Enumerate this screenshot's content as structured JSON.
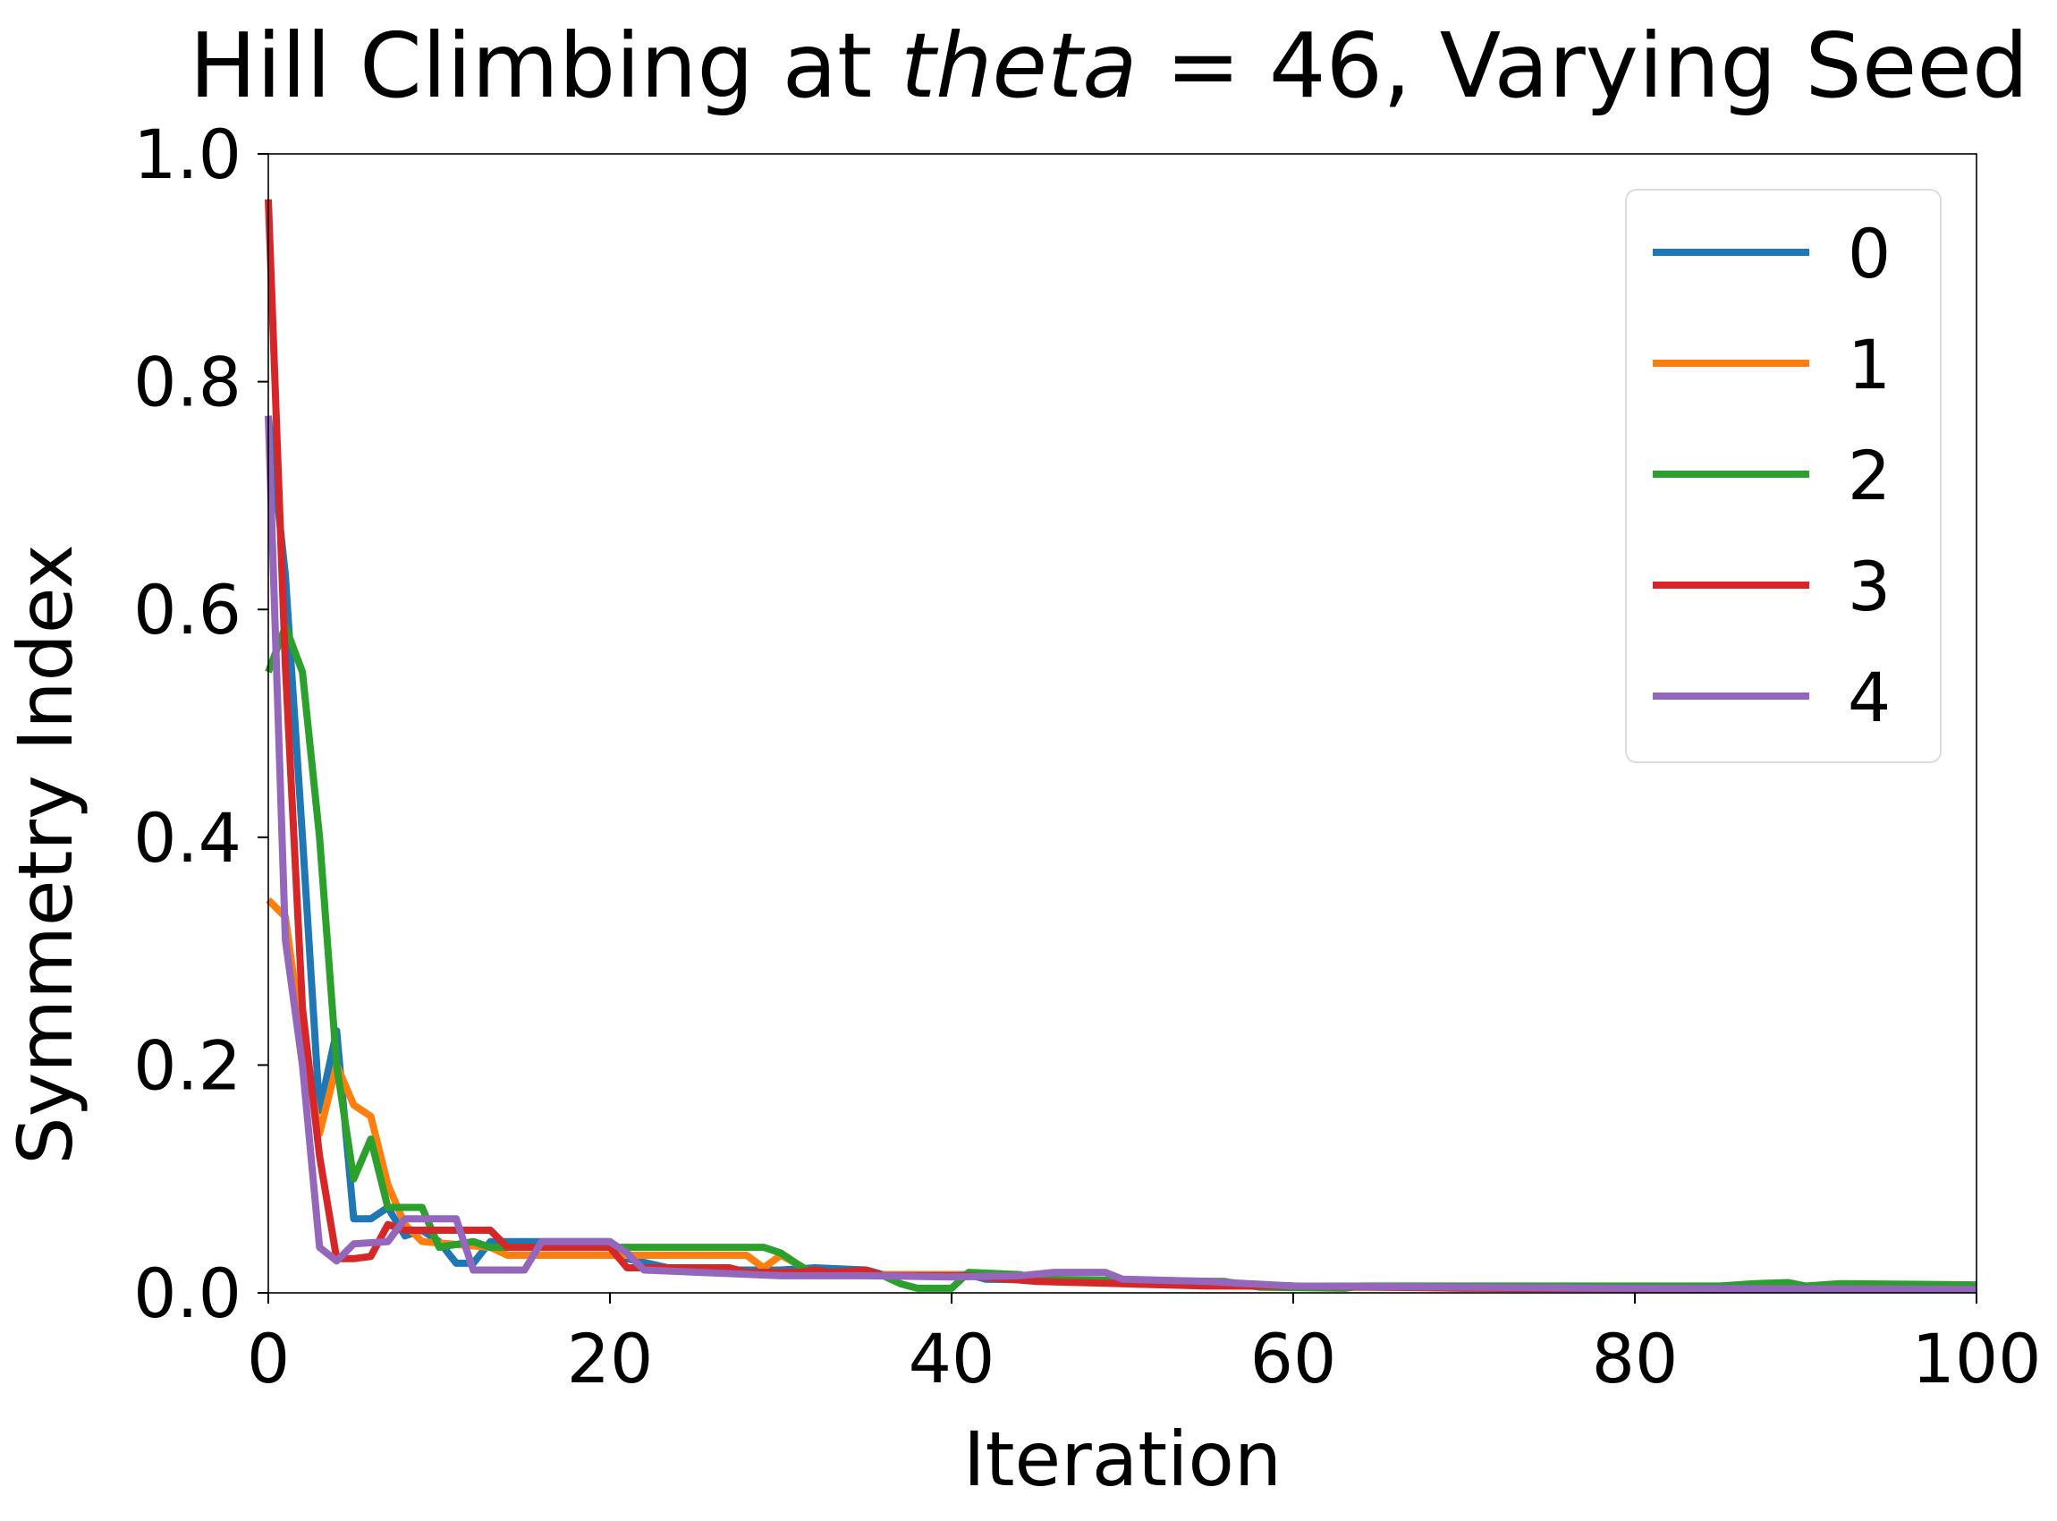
{
  "chart_data": {
    "type": "line",
    "title_parts": [
      "Hill Climbing at ",
      "theta",
      " = 46, Varying Seed"
    ],
    "xlabel": "Iteration",
    "ylabel": "Symmetry Index",
    "xlim": [
      0,
      100
    ],
    "ylim": [
      0.0,
      1.0
    ],
    "xticks": [
      0,
      20,
      40,
      60,
      80,
      100
    ],
    "xtick_labels": [
      "0",
      "20",
      "40",
      "60",
      "80",
      "100"
    ],
    "yticks": [
      0.0,
      0.2,
      0.4,
      0.6,
      0.8,
      1.0
    ],
    "ytick_labels": [
      "0.0",
      "0.2",
      "0.4",
      "0.6",
      "0.8",
      "1.0"
    ],
    "grid": false,
    "legend_position": "upper right",
    "series": [
      {
        "name": "0",
        "color": "#1f77b4",
        "points": [
          [
            0,
            0.77
          ],
          [
            1,
            0.63
          ],
          [
            2,
            0.4
          ],
          [
            3,
            0.16
          ],
          [
            4,
            0.23
          ],
          [
            5,
            0.065
          ],
          [
            6,
            0.065
          ],
          [
            7,
            0.075
          ],
          [
            8,
            0.05
          ],
          [
            9,
            0.055
          ],
          [
            10,
            0.045
          ],
          [
            11,
            0.026
          ],
          [
            12,
            0.026
          ],
          [
            13,
            0.045
          ],
          [
            20,
            0.045
          ],
          [
            21,
            0.03
          ],
          [
            24,
            0.02
          ],
          [
            30,
            0.02
          ],
          [
            32,
            0.022
          ],
          [
            35,
            0.02
          ],
          [
            36,
            0.016
          ],
          [
            41,
            0.016
          ],
          [
            42,
            0.012
          ],
          [
            50,
            0.01
          ],
          [
            60,
            0.006
          ],
          [
            100,
            0.005
          ]
        ]
      },
      {
        "name": "1",
        "color": "#ff7f0e",
        "points": [
          [
            0,
            0.345
          ],
          [
            1,
            0.33
          ],
          [
            2,
            0.22
          ],
          [
            3,
            0.14
          ],
          [
            4,
            0.2
          ],
          [
            5,
            0.165
          ],
          [
            6,
            0.155
          ],
          [
            7,
            0.095
          ],
          [
            8,
            0.06
          ],
          [
            9,
            0.045
          ],
          [
            13,
            0.04
          ],
          [
            14,
            0.033
          ],
          [
            28,
            0.033
          ],
          [
            29,
            0.022
          ],
          [
            30,
            0.033
          ],
          [
            31,
            0.025
          ],
          [
            32,
            0.016
          ],
          [
            40,
            0.016
          ],
          [
            50,
            0.008
          ],
          [
            60,
            0.005
          ],
          [
            100,
            0.004
          ]
        ]
      },
      {
        "name": "2",
        "color": "#2ca02c",
        "points": [
          [
            0,
            0.545
          ],
          [
            1,
            0.585
          ],
          [
            2,
            0.545
          ],
          [
            3,
            0.4
          ],
          [
            4,
            0.2
          ],
          [
            5,
            0.1
          ],
          [
            6,
            0.135
          ],
          [
            7,
            0.075
          ],
          [
            9,
            0.075
          ],
          [
            10,
            0.04
          ],
          [
            12,
            0.045
          ],
          [
            13,
            0.04
          ],
          [
            20,
            0.04
          ],
          [
            29,
            0.04
          ],
          [
            30,
            0.035
          ],
          [
            31,
            0.025
          ],
          [
            32,
            0.016
          ],
          [
            36,
            0.015
          ],
          [
            37,
            0.008
          ],
          [
            38,
            0.004
          ],
          [
            40,
            0.004
          ],
          [
            41,
            0.018
          ],
          [
            44,
            0.016
          ],
          [
            45,
            0.012
          ],
          [
            56,
            0.01
          ],
          [
            58,
            0.005
          ],
          [
            63,
            0.004
          ],
          [
            64,
            0.006
          ],
          [
            85,
            0.006
          ],
          [
            87,
            0.008
          ],
          [
            89,
            0.009
          ],
          [
            90,
            0.006
          ],
          [
            92,
            0.008
          ],
          [
            100,
            0.007
          ]
        ]
      },
      {
        "name": "3",
        "color": "#d62728",
        "points": [
          [
            0,
            0.96
          ],
          [
            1,
            0.55
          ],
          [
            2,
            0.25
          ],
          [
            3,
            0.12
          ],
          [
            4,
            0.03
          ],
          [
            5,
            0.03
          ],
          [
            6,
            0.032
          ],
          [
            7,
            0.06
          ],
          [
            8,
            0.055
          ],
          [
            13,
            0.055
          ],
          [
            14,
            0.04
          ],
          [
            20,
            0.04
          ],
          [
            21,
            0.022
          ],
          [
            27,
            0.022
          ],
          [
            28,
            0.018
          ],
          [
            31,
            0.018
          ],
          [
            32,
            0.02
          ],
          [
            33,
            0.018
          ],
          [
            35,
            0.02
          ],
          [
            36,
            0.015
          ],
          [
            41,
            0.015
          ],
          [
            45,
            0.01
          ],
          [
            50,
            0.008
          ],
          [
            55,
            0.006
          ],
          [
            60,
            0.006
          ],
          [
            70,
            0.004
          ],
          [
            100,
            0.003
          ]
        ]
      },
      {
        "name": "4",
        "color": "#9467bd",
        "points": [
          [
            0,
            0.77
          ],
          [
            1,
            0.31
          ],
          [
            2,
            0.2
          ],
          [
            3,
            0.04
          ],
          [
            4,
            0.028
          ],
          [
            5,
            0.043
          ],
          [
            7,
            0.045
          ],
          [
            8,
            0.065
          ],
          [
            11,
            0.065
          ],
          [
            12,
            0.02
          ],
          [
            15,
            0.02
          ],
          [
            16,
            0.045
          ],
          [
            20,
            0.045
          ],
          [
            21,
            0.035
          ],
          [
            22,
            0.02
          ],
          [
            30,
            0.015
          ],
          [
            35,
            0.015
          ],
          [
            40,
            0.014
          ],
          [
            44,
            0.015
          ],
          [
            46,
            0.018
          ],
          [
            49,
            0.018
          ],
          [
            50,
            0.012
          ],
          [
            55,
            0.01
          ],
          [
            60,
            0.006
          ],
          [
            80,
            0.004
          ],
          [
            100,
            0.003
          ]
        ]
      }
    ]
  }
}
